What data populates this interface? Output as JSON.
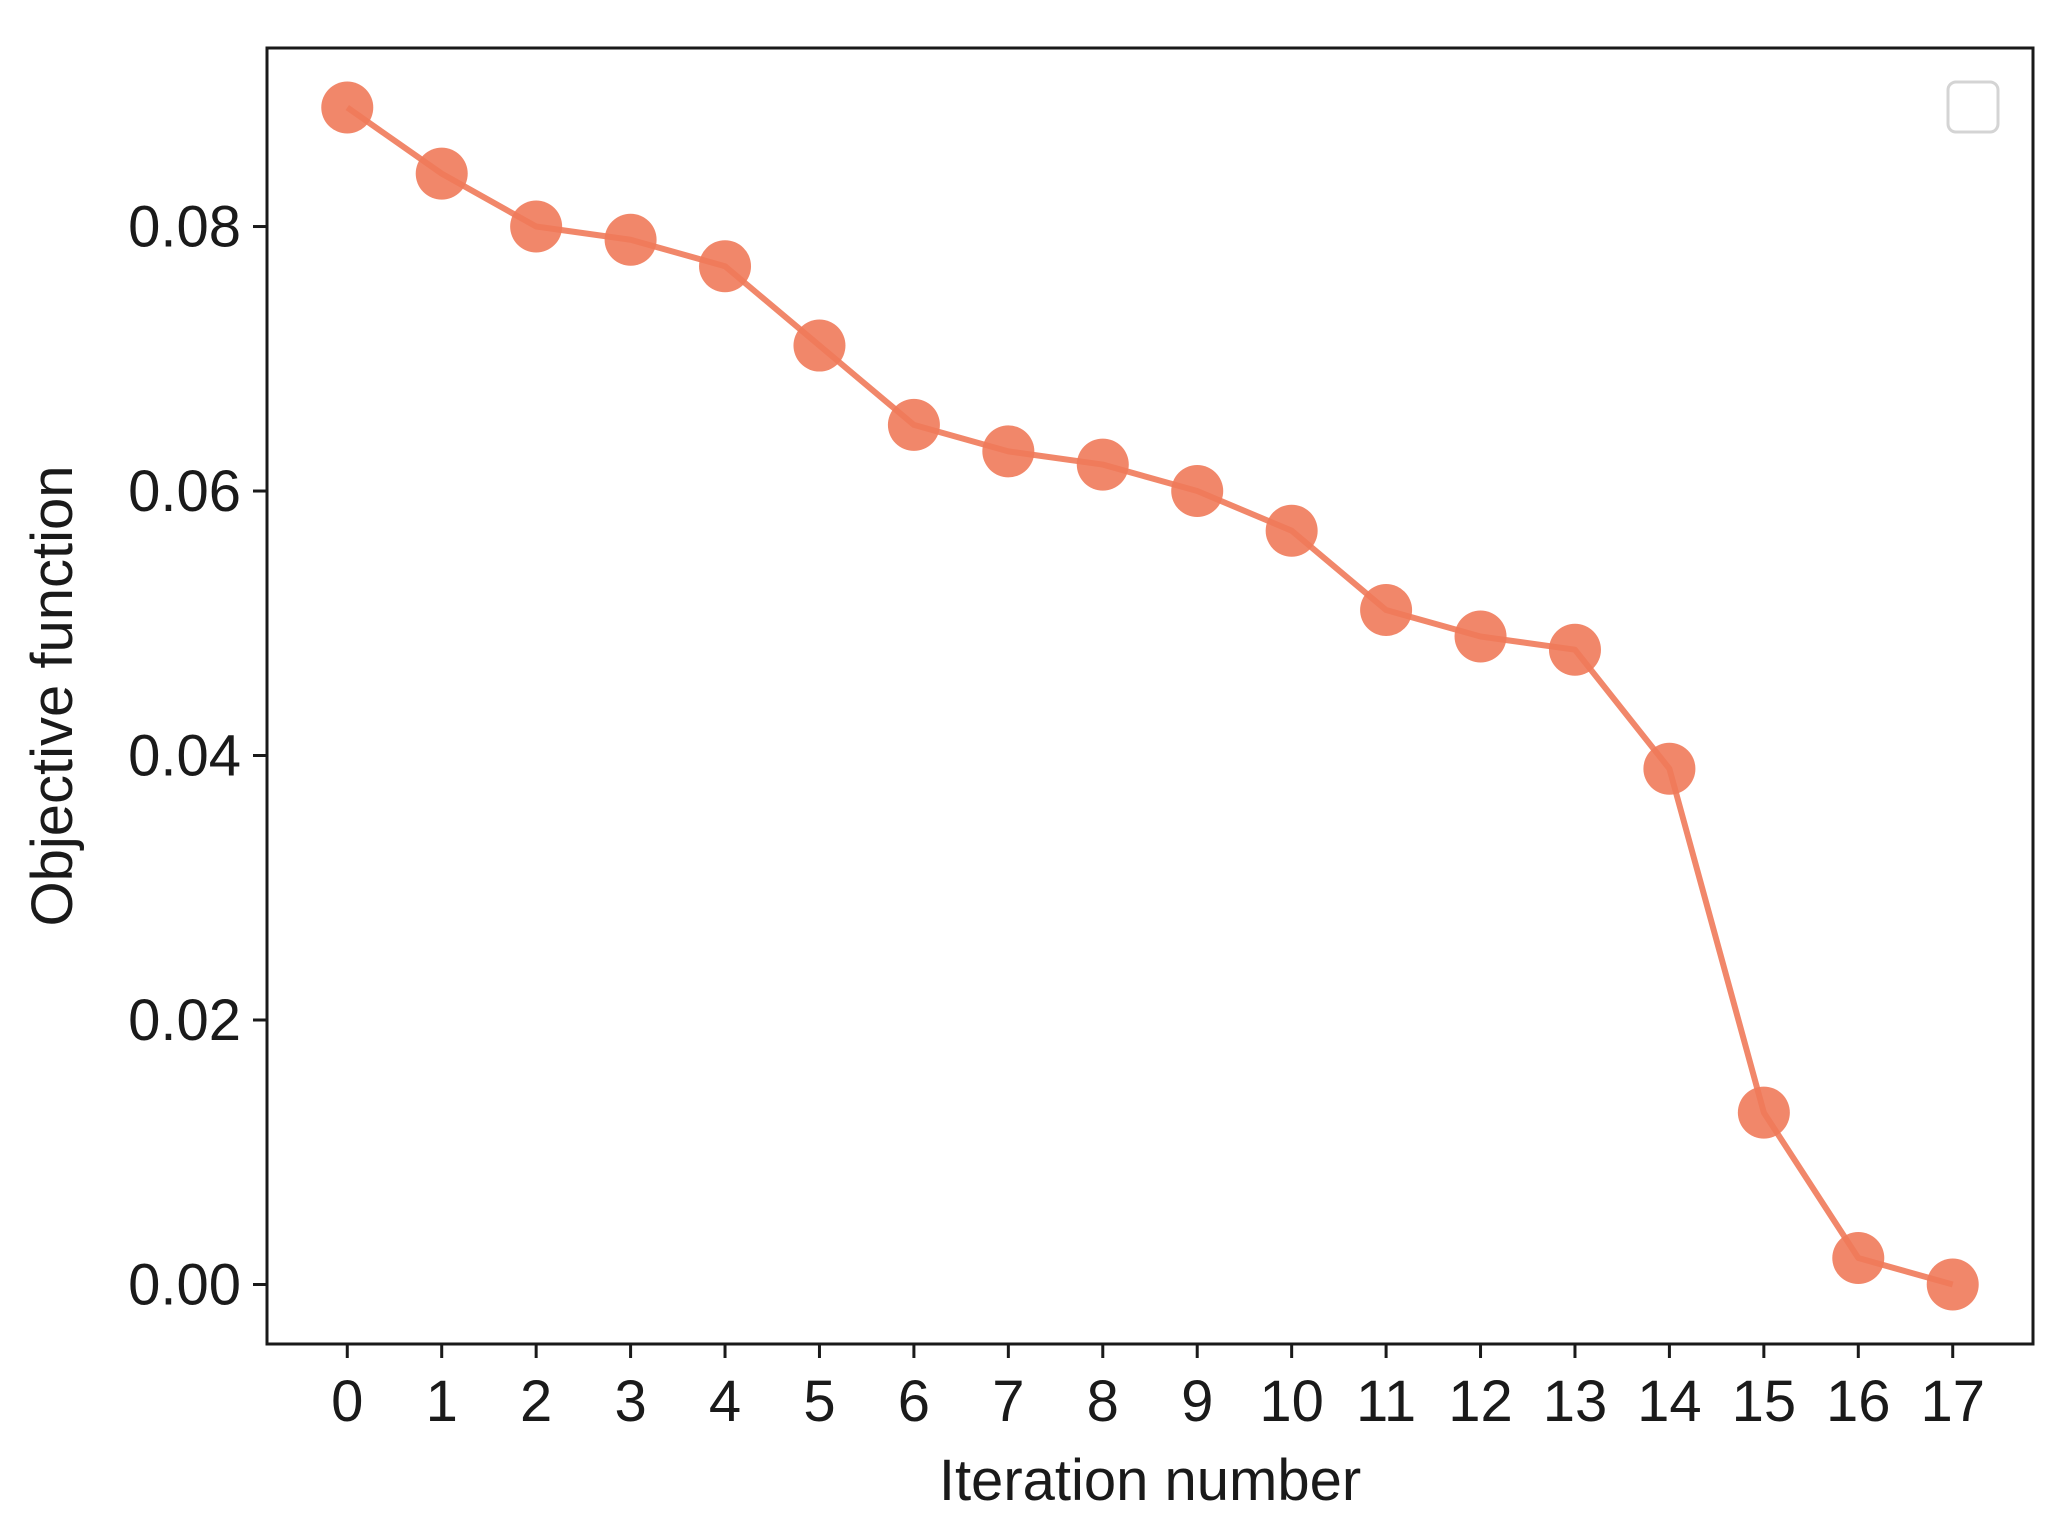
{
  "chart_data": {
    "type": "line",
    "title": "",
    "xlabel": "Iteration number",
    "ylabel": "Objective function",
    "x": [
      0,
      1,
      2,
      3,
      4,
      5,
      6,
      7,
      8,
      9,
      10,
      11,
      12,
      13,
      14,
      15,
      16,
      17
    ],
    "x_tick_labels": [
      "0",
      "1",
      "2",
      "3",
      "4",
      "5",
      "6",
      "7",
      "8",
      "9",
      "10",
      "11",
      "12",
      "13",
      "14",
      "15",
      "16",
      "17"
    ],
    "series": [
      {
        "values": [
          0.089,
          0.084,
          0.08,
          0.079,
          0.077,
          0.071,
          0.065,
          0.063,
          0.062,
          0.06,
          0.057,
          0.051,
          0.049,
          0.048,
          0.039,
          0.013,
          0.002,
          0.0
        ],
        "color": "#f07a5a",
        "marker": "circle"
      }
    ],
    "y_ticks": [
      0.0,
      0.02,
      0.04,
      0.06,
      0.08
    ],
    "y_tick_labels": [
      "0.00",
      "0.02",
      "0.04",
      "0.06",
      "0.08"
    ],
    "xlim": [
      -0.85,
      17.85
    ],
    "ylim": [
      -0.0045,
      0.0935
    ],
    "grid": false,
    "legend": "top-right (empty box)"
  }
}
